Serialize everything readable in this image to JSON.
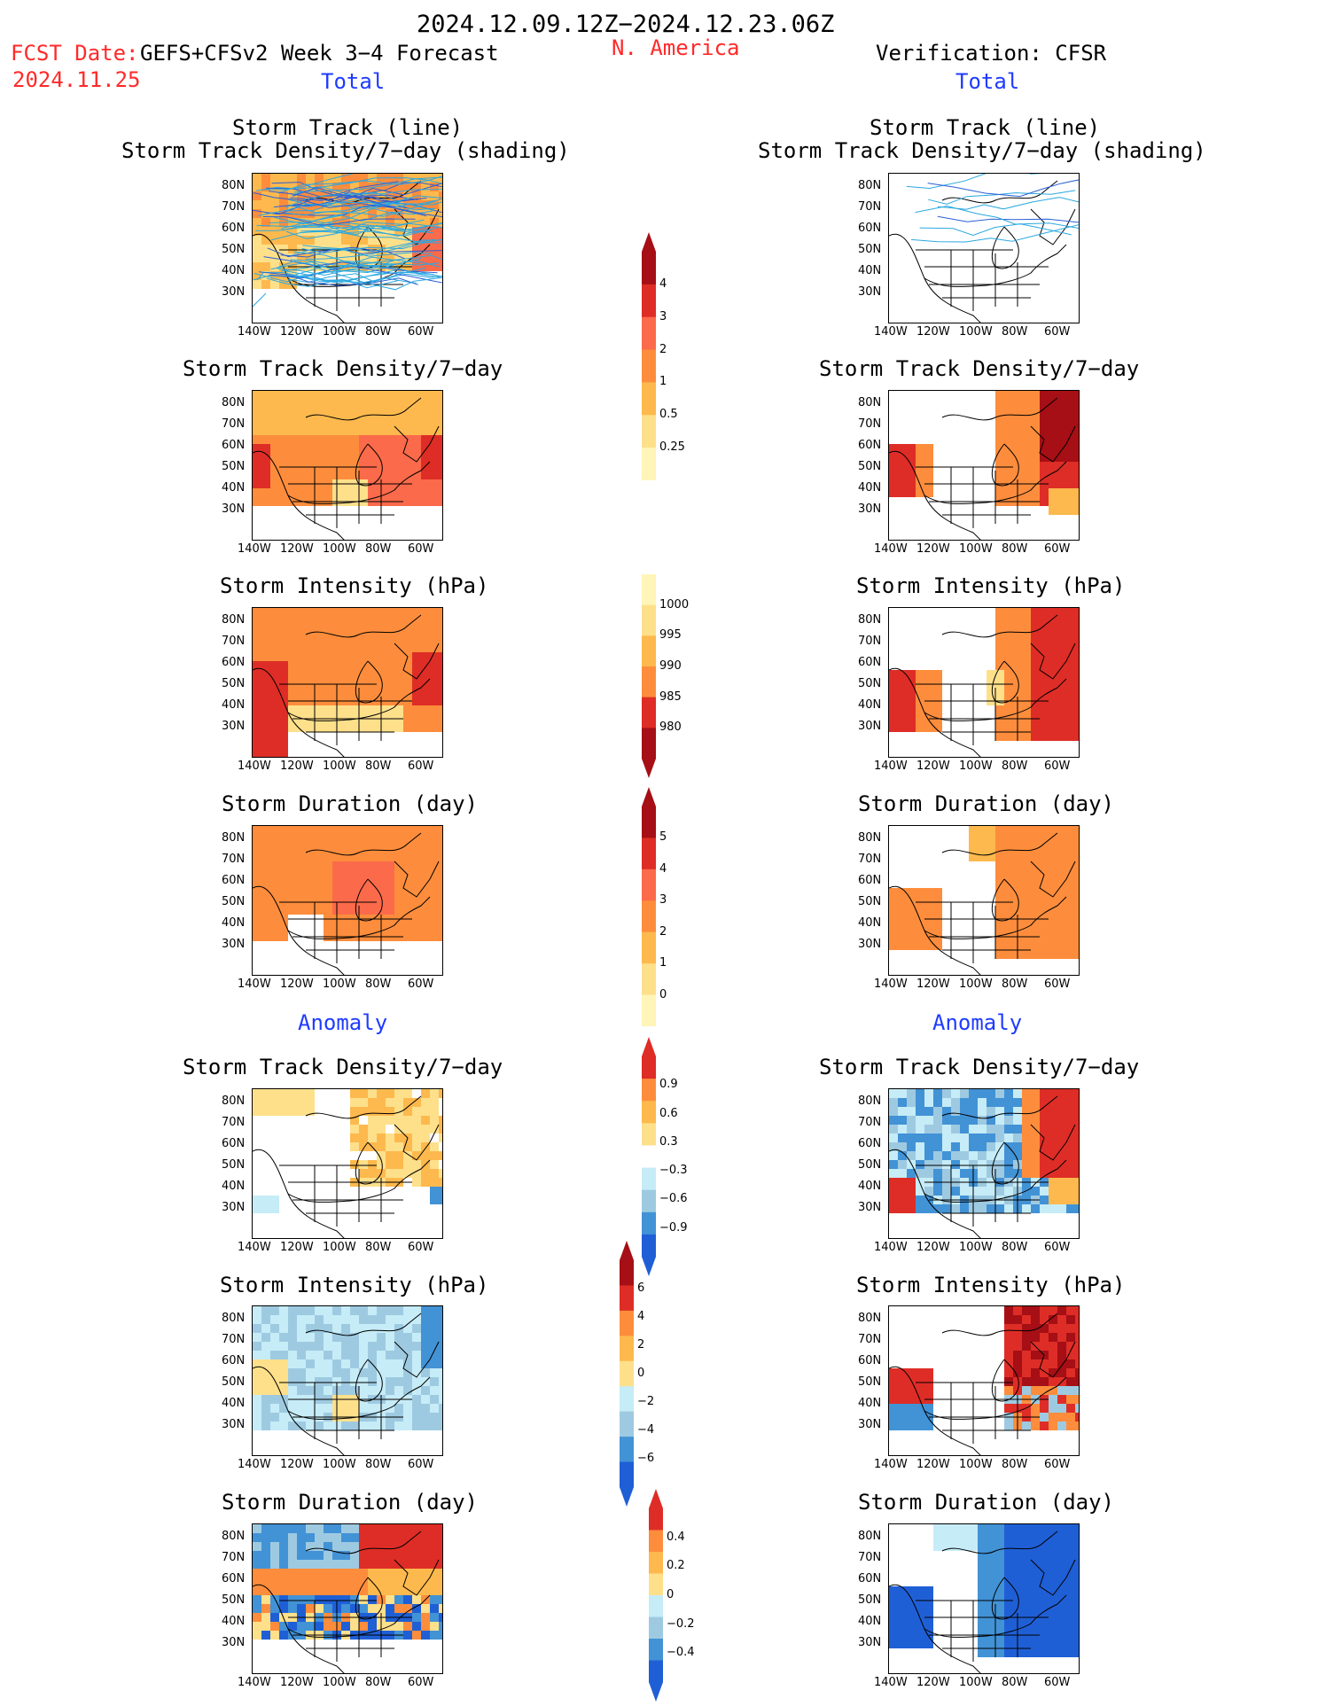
{
  "header": {
    "date_range": "2024.12.09.12Z−2024.12.23.06Z",
    "fcst_label": "FCST Date:",
    "fcst_model": "GEFS+CFSv2 Week 3−4 Forecast",
    "fcst_date": "2024.11.25",
    "region": "N. America",
    "verification": "Verification: CFSR"
  },
  "sections": {
    "total_left": "Total",
    "total_right": "Total",
    "anomaly_left": "Anomaly",
    "anomaly_right": "Anomaly"
  },
  "panel_titles": {
    "track_line": "Storm Track (line)",
    "track_shading": "Storm Track Density/7−day (shading)",
    "density": "Storm Track Density/7−day",
    "intensity": "Storm Intensity (hPa)",
    "duration": "Storm Duration (day)"
  },
  "axes": {
    "lat_labels": [
      "80N",
      "70N",
      "60N",
      "50N",
      "40N",
      "30N"
    ],
    "lon_labels": [
      "140W",
      "120W",
      "100W",
      "80W",
      "60W"
    ]
  },
  "colorbars": [
    {
      "name": "density-total",
      "labels": [
        "4",
        "3",
        "2",
        "1",
        "0.5",
        "0.25"
      ],
      "colors": [
        "#a50f15",
        "#de2d26",
        "#fb6a4a",
        "#fd8d3c",
        "#fdb94d",
        "#fee08b",
        "#fff5b8"
      ]
    },
    {
      "name": "intensity-total",
      "labels": [
        "1000",
        "995",
        "990",
        "985",
        "980"
      ],
      "colors": [
        "#fff5b8",
        "#fee08b",
        "#fdb94d",
        "#fd8d3c",
        "#de2d26",
        "#a50f15"
      ]
    },
    {
      "name": "duration-total",
      "labels": [
        "5",
        "4",
        "3",
        "2",
        "1",
        "0"
      ],
      "colors": [
        "#a50f15",
        "#de2d26",
        "#fb6a4a",
        "#fd8d3c",
        "#fdb94d",
        "#fee08b",
        "#fff5b8"
      ]
    },
    {
      "name": "density-anom",
      "labels": [
        "0.9",
        "0.6",
        "0.3",
        "−0.3",
        "−0.6",
        "−0.9"
      ],
      "colors": [
        "#de2d26",
        "#fd8d3c",
        "#fdb94d",
        "#fee08b",
        "#ffffff",
        "#c6ecf7",
        "#9ecae1",
        "#4292d6",
        "#1f5fd6"
      ]
    },
    {
      "name": "intensity-anom",
      "labels": [
        "6",
        "4",
        "2",
        "0",
        "−2",
        "−4",
        "−6"
      ],
      "colors": [
        "#a50f15",
        "#de2d26",
        "#fd8d3c",
        "#fdb94d",
        "#fee08b",
        "#c6ecf7",
        "#9ecae1",
        "#4292d6",
        "#1f5fd6"
      ]
    },
    {
      "name": "duration-anom",
      "labels": [
        "0.4",
        "0.2",
        "0",
        "−0.2",
        "−0.4"
      ],
      "colors": [
        "#de2d26",
        "#fd8d3c",
        "#fdb94d",
        "#fee08b",
        "#c6ecf7",
        "#9ecae1",
        "#4292d6",
        "#1f5fd6"
      ]
    }
  ],
  "colors": {
    "title_red": "#ff2a2a",
    "section_blue": "#1f3bff"
  }
}
